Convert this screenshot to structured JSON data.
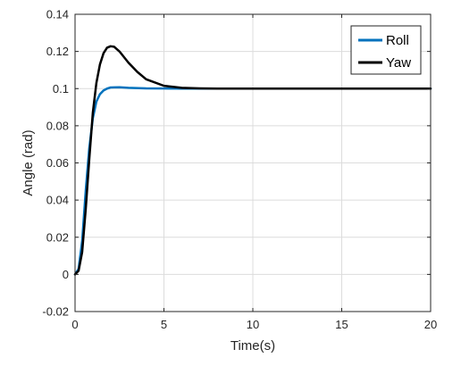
{
  "chart_data": {
    "type": "line",
    "title": "",
    "xlabel": "Time(s)",
    "ylabel": "Angle (rad)",
    "xlim": [
      0,
      20
    ],
    "ylim": [
      -0.02,
      0.14
    ],
    "x_ticks": [
      "0",
      "5",
      "10",
      "15",
      "20"
    ],
    "y_ticks": [
      "-0.02",
      "0",
      "0.02",
      "0.04",
      "0.06",
      "0.08",
      "0.1",
      "0.12",
      "0.14"
    ],
    "grid": true,
    "legend_position": "top-right",
    "series": [
      {
        "name": "Roll",
        "color": "#0072BD",
        "x": [
          0,
          0.2,
          0.4,
          0.6,
          0.8,
          1.0,
          1.2,
          1.4,
          1.6,
          1.8,
          2.0,
          2.5,
          3.0,
          4.0,
          6.0,
          10.0,
          20.0
        ],
        "y": [
          0,
          0.003,
          0.018,
          0.045,
          0.068,
          0.084,
          0.093,
          0.097,
          0.099,
          0.1,
          0.1006,
          0.1007,
          0.1004,
          0.1001,
          0.1,
          0.1,
          0.1
        ]
      },
      {
        "name": "Yaw",
        "color": "#000000",
        "x": [
          0,
          0.2,
          0.4,
          0.6,
          0.8,
          1.0,
          1.2,
          1.4,
          1.6,
          1.8,
          2.0,
          2.2,
          2.5,
          3.0,
          3.5,
          4.0,
          5.0,
          6.0,
          7.0,
          8.0,
          10.0,
          20.0
        ],
        "y": [
          0,
          0.002,
          0.012,
          0.035,
          0.062,
          0.087,
          0.103,
          0.113,
          0.119,
          0.122,
          0.1228,
          0.1225,
          0.12,
          0.114,
          0.109,
          0.105,
          0.1015,
          0.1004,
          0.1001,
          0.1,
          0.1,
          0.1
        ]
      }
    ]
  }
}
